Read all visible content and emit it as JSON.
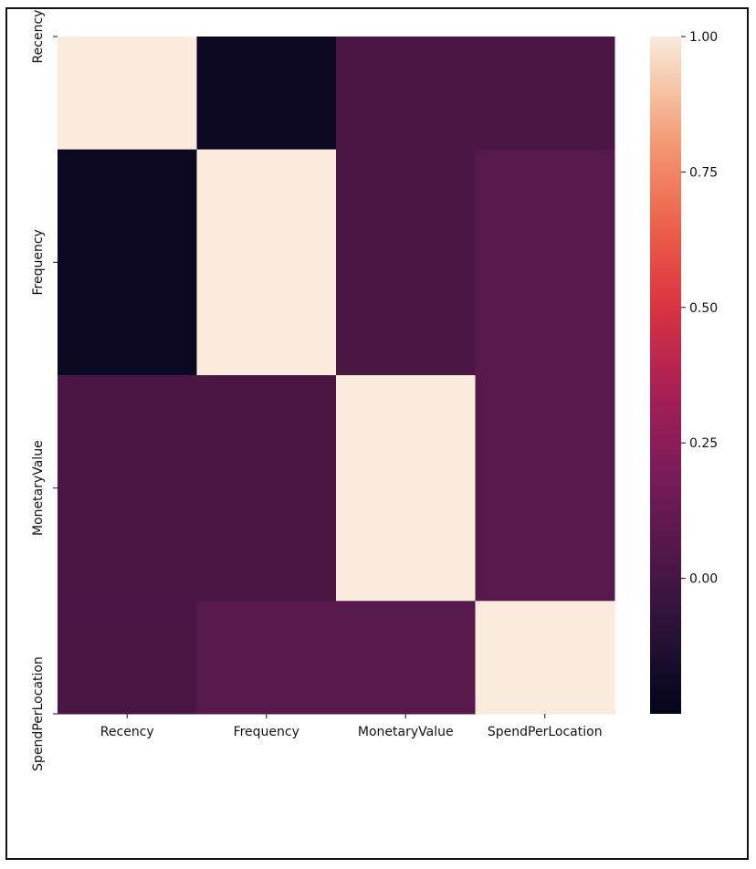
{
  "chart_data": {
    "type": "heatmap",
    "title": "",
    "xlabel": "",
    "ylabel": "",
    "x_categories": [
      "Recency",
      "Frequency",
      "MonetaryValue",
      "SpendPerLocation"
    ],
    "y_categories": [
      "Recency",
      "Frequency",
      "MonetaryValue",
      "SpendPerLocation"
    ],
    "values": [
      [
        1.0,
        -0.21,
        0.02,
        0.02
      ],
      [
        -0.21,
        1.0,
        0.02,
        0.07
      ],
      [
        0.02,
        0.02,
        1.0,
        0.07
      ],
      [
        0.02,
        0.07,
        0.07,
        1.0
      ]
    ],
    "row_breaks": [
      0,
      1,
      2,
      3,
      4
    ],
    "row_fractions": [
      1,
      2,
      2,
      1
    ],
    "colorbar": {
      "vmin": -0.25,
      "vmax": 1.0,
      "ticks": [
        1.0,
        0.75,
        0.5,
        0.25,
        0.0
      ],
      "tick_labels": [
        "1.00",
        "0.75",
        "0.50",
        "0.25",
        "0.00"
      ],
      "colormap": "rocket"
    },
    "grid": false,
    "legend": "colorbar-right"
  }
}
